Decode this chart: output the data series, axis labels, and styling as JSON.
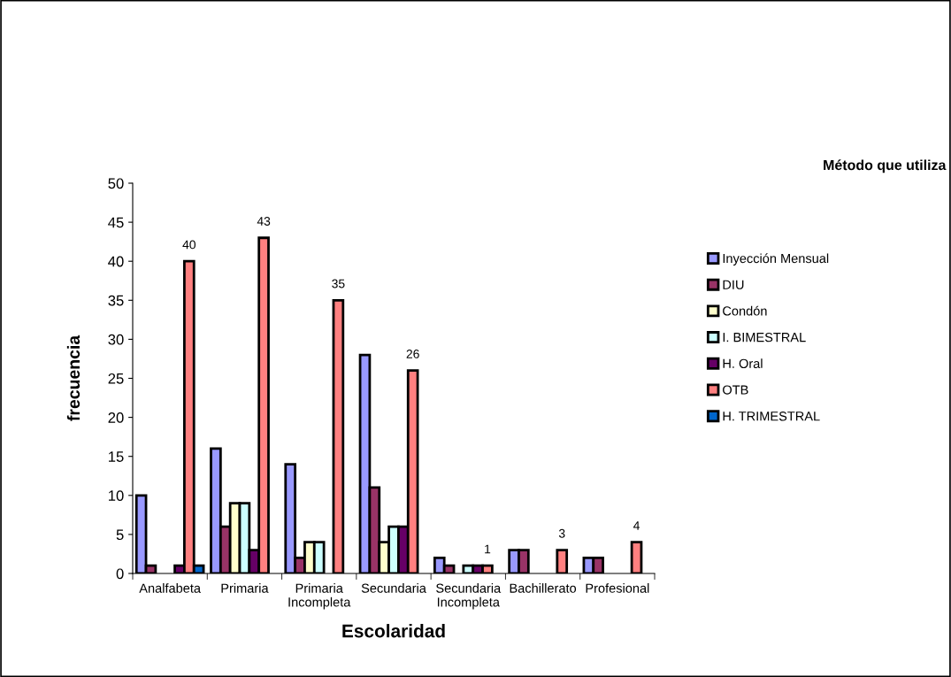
{
  "chart_data": {
    "type": "bar",
    "xlabel": "Escolaridad",
    "ylabel": "frecuencia",
    "legend_title": "Método que utiliza",
    "categories": [
      "Analfabeta",
      "Primaria",
      "Primaria\nIncompleta",
      "Secundaria",
      "Secundaria\nIncompleta",
      "Bachillerato",
      "Profesional"
    ],
    "series": [
      {
        "name": "Inyección Mensual",
        "color": "#9999ff",
        "values": [
          10,
          16,
          14,
          28,
          2,
          3,
          2
        ]
      },
      {
        "name": "DIU",
        "color": "#993366",
        "values": [
          1,
          6,
          2,
          11,
          1,
          3,
          2
        ]
      },
      {
        "name": "Condón",
        "color": "#ffffcc",
        "values": [
          null,
          9,
          4,
          4,
          null,
          null,
          null
        ]
      },
      {
        "name": "I. BIMESTRAL",
        "color": "#ccffff",
        "values": [
          null,
          9,
          4,
          6,
          1,
          null,
          null
        ]
      },
      {
        "name": "H. Oral",
        "color": "#660066",
        "values": [
          1,
          3,
          null,
          6,
          1,
          null,
          null
        ]
      },
      {
        "name": "OTB",
        "color": "#ff8080",
        "values": [
          40,
          43,
          35,
          26,
          1,
          3,
          4
        ],
        "value_labels": [
          "40",
          "43",
          "35",
          "26",
          "1",
          "3",
          "4"
        ]
      },
      {
        "name": "H. TRIMESTRAL",
        "color": "#0066cc",
        "values": [
          1,
          null,
          null,
          null,
          null,
          null,
          null
        ]
      }
    ],
    "ylim": [
      0,
      50
    ],
    "yticks": [
      0,
      5,
      10,
      15,
      20,
      25,
      30,
      35,
      40,
      45,
      50
    ],
    "grid": false,
    "legend": "right"
  }
}
